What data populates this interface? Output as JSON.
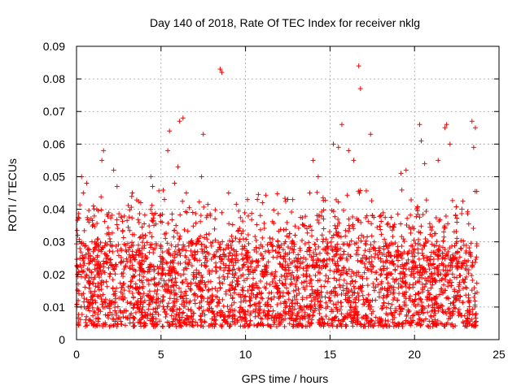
{
  "chart_data": {
    "type": "scatter",
    "title": "Day 140 of 2018, Rate Of TEC Index for receiver nklg",
    "xlabel": "GPS time / hours",
    "ylabel": "ROTI / TECUs",
    "xlim": [
      0,
      25
    ],
    "ylim": [
      0,
      0.09
    ],
    "xticks": [
      0,
      5,
      10,
      15,
      20,
      25
    ],
    "xtick_labels": [
      "0",
      "5",
      "10",
      "15",
      "20",
      "25"
    ],
    "yticks": [
      0,
      0.01,
      0.02,
      0.03,
      0.04,
      0.05,
      0.06,
      0.07,
      0.08,
      0.09
    ],
    "ytick_labels": [
      "0",
      "0.01",
      "0.02",
      "0.03",
      "0.04",
      "0.05",
      "0.06",
      "0.07",
      "0.08",
      "0.09"
    ],
    "grid": true,
    "marker": "+",
    "marker_color": "#ff0000",
    "series": [
      {
        "name": "ROTI",
        "x_range": [
          0,
          23.7
        ],
        "typical_range": [
          0.004,
          0.03
        ],
        "points": [
          [
            0.1,
            0.012
          ],
          [
            0.3,
            0.05
          ],
          [
            0.4,
            0.045
          ],
          [
            0.6,
            0.048
          ],
          [
            1.0,
            0.041
          ],
          [
            1.2,
            0.04
          ],
          [
            1.5,
            0.055
          ],
          [
            1.6,
            0.058
          ],
          [
            2.2,
            0.052
          ],
          [
            2.4,
            0.047
          ],
          [
            3.3,
            0.045
          ],
          [
            3.8,
            0.042
          ],
          [
            4.4,
            0.05
          ],
          [
            4.5,
            0.047
          ],
          [
            5.2,
            0.043
          ],
          [
            5.4,
            0.058
          ],
          [
            5.5,
            0.064
          ],
          [
            5.8,
            0.048
          ],
          [
            6.0,
            0.053
          ],
          [
            6.1,
            0.067
          ],
          [
            6.3,
            0.068
          ],
          [
            6.5,
            0.045
          ],
          [
            7.4,
            0.05
          ],
          [
            7.5,
            0.063
          ],
          [
            8.5,
            0.083
          ],
          [
            8.6,
            0.082
          ],
          [
            9.0,
            0.045
          ],
          [
            10.7,
            0.043
          ],
          [
            11.0,
            0.042
          ],
          [
            12.5,
            0.043
          ],
          [
            13.8,
            0.045
          ],
          [
            14.0,
            0.055
          ],
          [
            14.3,
            0.05
          ],
          [
            15.2,
            0.06
          ],
          [
            15.5,
            0.059
          ],
          [
            15.7,
            0.066
          ],
          [
            16.1,
            0.058
          ],
          [
            16.4,
            0.055
          ],
          [
            16.7,
            0.084
          ],
          [
            16.8,
            0.077
          ],
          [
            17.4,
            0.063
          ],
          [
            19.2,
            0.051
          ],
          [
            19.5,
            0.052
          ],
          [
            20.3,
            0.066
          ],
          [
            20.4,
            0.061
          ],
          [
            20.6,
            0.054
          ],
          [
            21.4,
            0.055
          ],
          [
            21.8,
            0.065
          ],
          [
            21.9,
            0.066
          ],
          [
            22.1,
            0.06
          ],
          [
            23.4,
            0.067
          ],
          [
            23.5,
            0.059
          ],
          [
            23.6,
            0.065
          ]
        ]
      }
    ]
  }
}
